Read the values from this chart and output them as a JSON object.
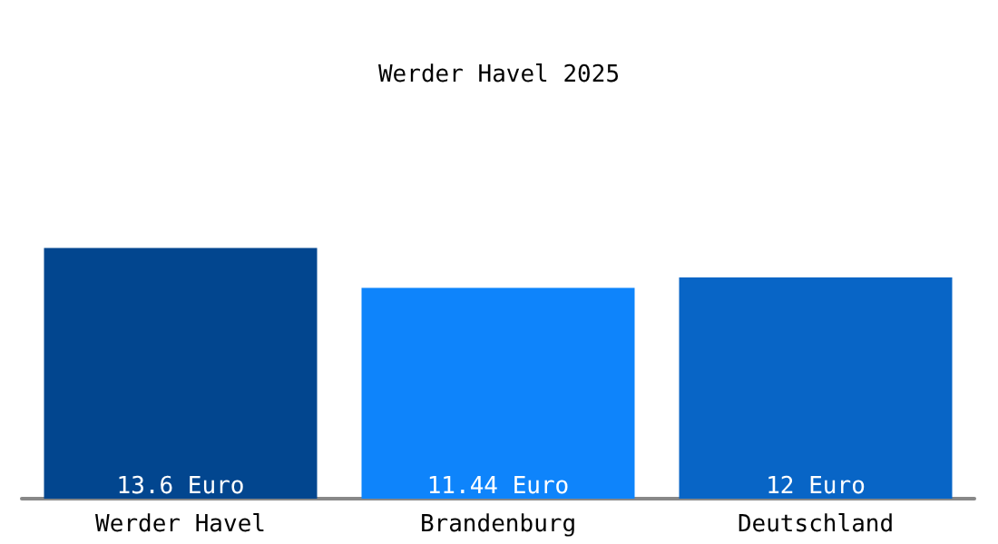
{
  "chart_data": {
    "type": "bar",
    "title": "Werder Havel 2025",
    "categories": [
      "Werder Havel",
      "Brandenburg",
      "Deutschland"
    ],
    "values": [
      13.6,
      11.44,
      12
    ],
    "colors": [
      "#02468f",
      "#0e84fb",
      "#0865c6"
    ],
    "value_labels": [
      "13.6 Euro",
      "11.44 Euro",
      "12 Euro"
    ]
  }
}
